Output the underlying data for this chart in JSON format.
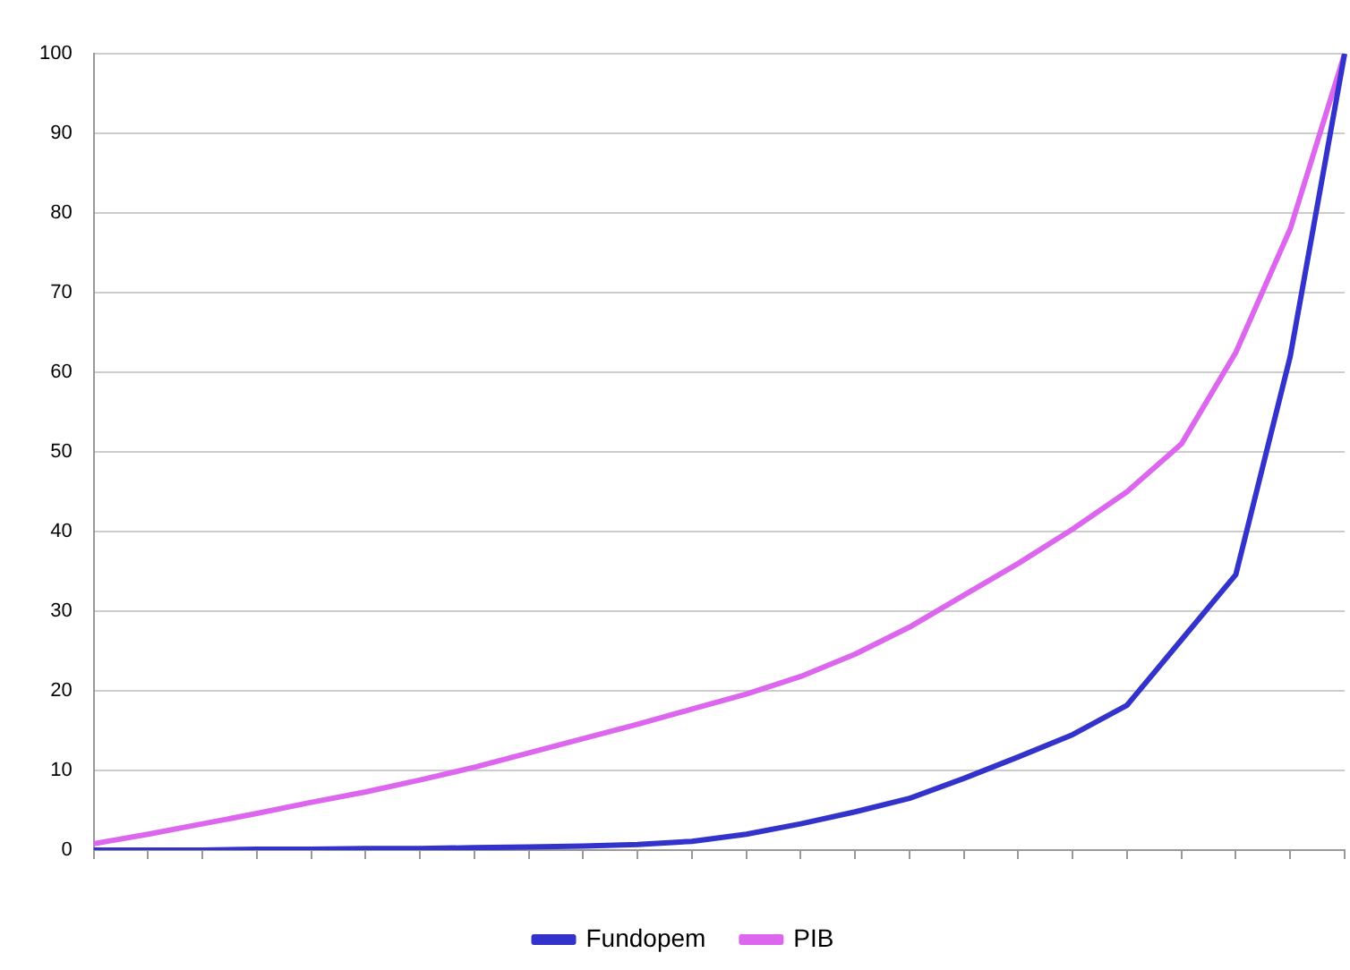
{
  "chart_data": {
    "type": "line",
    "categories": [
      null,
      null,
      null,
      null,
      null,
      null,
      null,
      null,
      null,
      null,
      null,
      null,
      null,
      null,
      null,
      null,
      null,
      null,
      null,
      null,
      null,
      null,
      null,
      null
    ],
    "series": [
      {
        "name": "Fundopem",
        "color": "#3333cc",
        "values": [
          0,
          0,
          0,
          0.1,
          0.1,
          0.2,
          0.2,
          0.3,
          0.4,
          0.5,
          0.7,
          1.1,
          2,
          3.3,
          4.8,
          6.5,
          9,
          11.7,
          14.5,
          18.2,
          26.4,
          34.6,
          62,
          100
        ]
      },
      {
        "name": "PIB",
        "color": "#dd66ee",
        "values": [
          0.8,
          2,
          3.3,
          4.6,
          6,
          7.3,
          8.8,
          10.4,
          12.2,
          14,
          15.8,
          17.7,
          19.6,
          21.8,
          24.6,
          28,
          32,
          36,
          40.3,
          45,
          51,
          62.5,
          78,
          100
        ]
      }
    ],
    "ylim": [
      0,
      100
    ],
    "yticks": [
      0,
      10,
      20,
      30,
      40,
      50,
      60,
      70,
      80,
      90,
      100
    ],
    "grid": "y",
    "legend": "bottom",
    "marker": "none",
    "line_style": "solid"
  }
}
